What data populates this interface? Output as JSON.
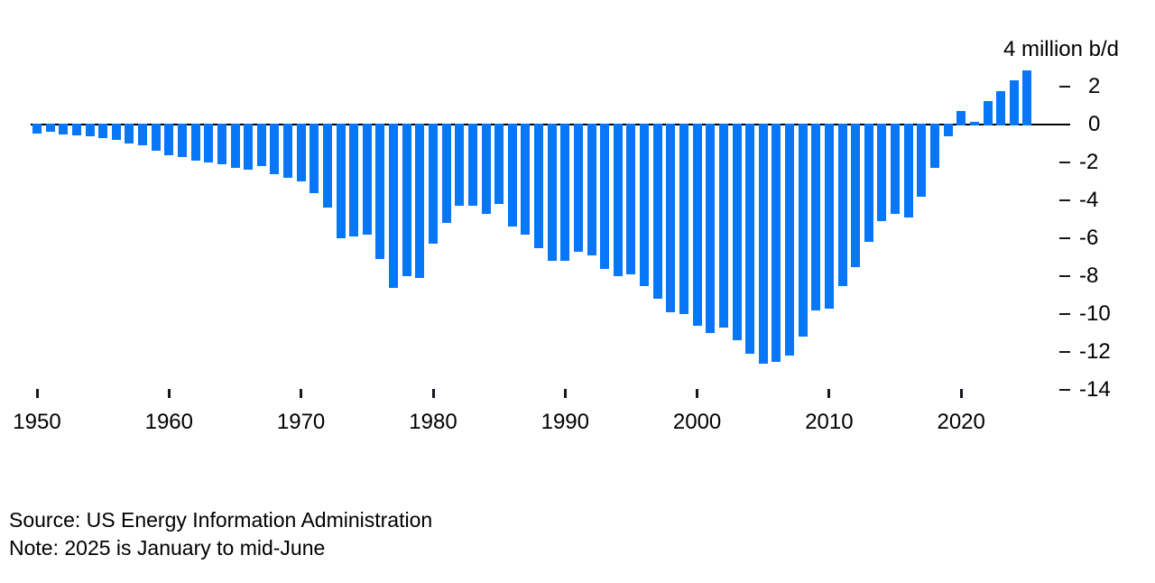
{
  "chart_data": {
    "type": "bar",
    "title": "",
    "xlabel": "",
    "ylabel": "",
    "unit_label": "4 million b/d",
    "legend": null,
    "grid": false,
    "ylim": [
      -14,
      4
    ],
    "bar_color": "#0777f8",
    "axis_color": "#000000",
    "y_ticks": [
      2,
      0,
      -2,
      -4,
      -6,
      -8,
      -10,
      -12,
      -14
    ],
    "x_ticks": [
      1950,
      1960,
      1970,
      1980,
      1990,
      2000,
      2010,
      2020
    ],
    "years": [
      1950,
      1951,
      1952,
      1953,
      1954,
      1955,
      1956,
      1957,
      1958,
      1959,
      1960,
      1961,
      1962,
      1963,
      1964,
      1965,
      1966,
      1967,
      1968,
      1969,
      1970,
      1971,
      1972,
      1973,
      1974,
      1975,
      1976,
      1977,
      1978,
      1979,
      1980,
      1981,
      1982,
      1983,
      1984,
      1985,
      1986,
      1987,
      1988,
      1989,
      1990,
      1991,
      1992,
      1993,
      1994,
      1995,
      1996,
      1997,
      1998,
      1999,
      2000,
      2001,
      2002,
      2003,
      2004,
      2005,
      2006,
      2007,
      2008,
      2009,
      2010,
      2011,
      2012,
      2013,
      2014,
      2015,
      2016,
      2017,
      2018,
      2019,
      2020,
      2021,
      2022,
      2023,
      2024,
      2025
    ],
    "values": [
      -0.45,
      -0.4,
      -0.5,
      -0.55,
      -0.6,
      -0.7,
      -0.8,
      -1.0,
      -1.1,
      -1.4,
      -1.6,
      -1.7,
      -1.9,
      -2.0,
      -2.1,
      -2.3,
      -2.4,
      -2.2,
      -2.6,
      -2.8,
      -3.0,
      -3.6,
      -4.4,
      -6.0,
      -5.9,
      -5.8,
      -7.1,
      -8.6,
      -8.0,
      -8.1,
      -6.3,
      -5.2,
      -4.3,
      -4.3,
      -4.7,
      -4.2,
      -5.4,
      -5.8,
      -6.5,
      -7.2,
      -7.2,
      -6.7,
      -6.9,
      -7.6,
      -8.0,
      -7.9,
      -8.5,
      -9.2,
      -9.9,
      -10.0,
      -10.6,
      -11.0,
      -10.7,
      -11.4,
      -12.1,
      -12.6,
      -12.5,
      -12.2,
      -11.2,
      -9.8,
      -9.7,
      -8.5,
      -7.5,
      -6.2,
      -5.1,
      -4.7,
      -4.9,
      -3.8,
      -2.3,
      -0.6,
      0.7,
      0.15,
      1.25,
      1.75,
      2.35,
      2.85
    ]
  },
  "footer": {
    "source": "Source: US Energy Information Administration",
    "note": "Note: 2025 is January to mid-June"
  }
}
